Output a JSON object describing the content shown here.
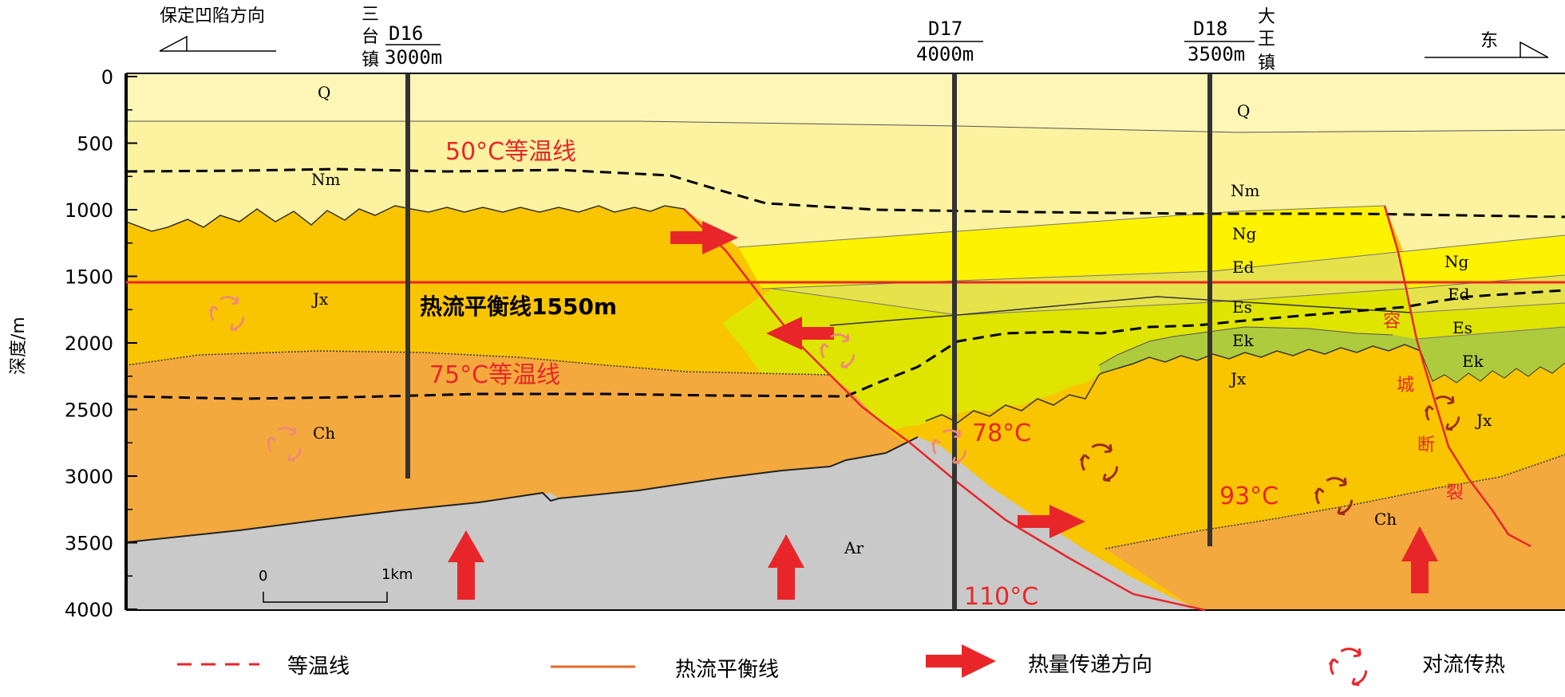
{
  "direction": {
    "west": "保定凹陷方向",
    "east": "东"
  },
  "wells": [
    {
      "id": "D16",
      "depth": "3000m",
      "town": [
        "三",
        "台",
        "镇"
      ]
    },
    {
      "id": "D17",
      "depth": "4000m",
      "town": []
    },
    {
      "id": "D18",
      "depth": "3500m",
      "town": [
        "大",
        "王",
        "镇"
      ]
    }
  ],
  "axis": {
    "ylabel": "深度/m",
    "ticks": [
      "0",
      "500",
      "1000",
      "1500",
      "2000",
      "2500",
      "3000",
      "3500",
      "4000"
    ]
  },
  "isotherms": {
    "t50": "50°C等温线",
    "t75": "75°C等温线",
    "t78": "78°C",
    "t93": "93°C",
    "t110": "110°C"
  },
  "balance_line": "热流平衡线1550m",
  "formations": {
    "Q": "Q",
    "Nm": "Nm",
    "Ng": "Ng",
    "Ed": "Ed",
    "Es": "Es",
    "Ek": "Ek",
    "Jx": "Jx",
    "Ch": "Ch",
    "Ar": "Ar"
  },
  "fault_label": [
    "容",
    "城",
    "断",
    "裂"
  ],
  "scale": {
    "start": "0",
    "end": "1km"
  },
  "legend": {
    "isotherm": "等温线",
    "balance": "热流平衡线",
    "heat_direction": "热量传递方向",
    "convection": "对流传热"
  },
  "colors": {
    "Q": "#fdf6b6",
    "Nm": "#fcf2a0",
    "Ng": "#fdf200",
    "Ed": "#e6e24c",
    "Es": "#dfe400",
    "Ek": "#aecb3e",
    "Jx": "#f9c400",
    "Ch": "#f3a93e",
    "Ar": "#c9c9c9",
    "red": "#e8262a"
  }
}
